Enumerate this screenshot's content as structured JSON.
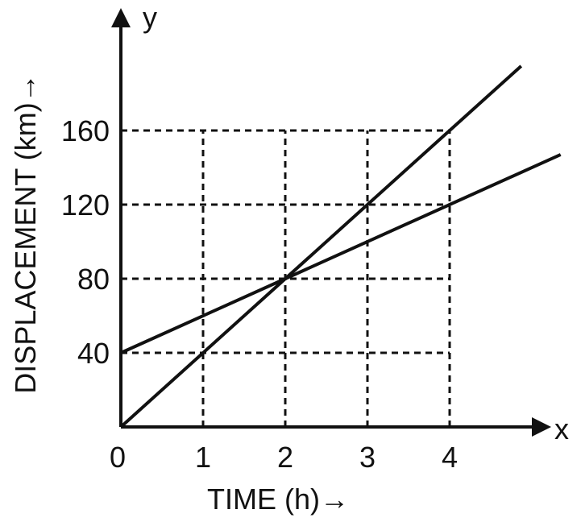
{
  "chart_data": {
    "type": "line",
    "title": "",
    "xlabel": "TIME (h)→",
    "ylabel": "DISPLACEMENT (km)→",
    "x_axis_letter": "x",
    "y_axis_letter": "y",
    "xlim": [
      0,
      5
    ],
    "ylim": [
      0,
      220
    ],
    "x_ticks": [
      0,
      1,
      2,
      3,
      4
    ],
    "x_tick_labels": [
      "0",
      "1",
      "2",
      "3",
      "4"
    ],
    "y_ticks": [
      40,
      80,
      120,
      160
    ],
    "y_tick_labels": [
      "40",
      "80",
      "120",
      "160"
    ],
    "grid": "dashed",
    "legend": "none",
    "series": [
      {
        "points": [
          [
            0,
            0
          ],
          [
            4,
            160
          ],
          [
            4.87,
            194.8
          ]
        ]
      },
      {
        "points": [
          [
            0,
            40
          ],
          [
            4,
            120
          ],
          [
            5.35,
            147
          ]
        ]
      }
    ]
  }
}
